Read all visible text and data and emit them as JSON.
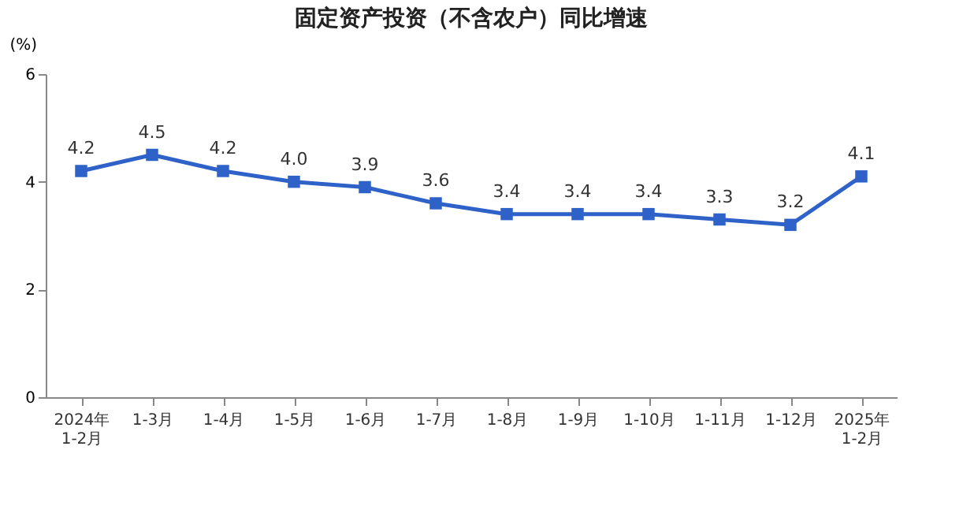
{
  "chart_data": {
    "type": "line",
    "title": "固定资产投资（不含农户）同比增速",
    "ylabel": "(%)",
    "categories": [
      "2024年\n1-2月",
      "1-3月",
      "1-4月",
      "1-5月",
      "1-6月",
      "1-7月",
      "1-8月",
      "1-9月",
      "1-10月",
      "1-11月",
      "1-12月",
      "2025年\n1-2月"
    ],
    "series": [
      {
        "color": "#2f62c8",
        "values": [
          4.2,
          4.5,
          4.2,
          4.0,
          3.9,
          3.6,
          3.4,
          3.4,
          3.4,
          3.3,
          3.2,
          4.1
        ],
        "value_labels": [
          "4.2",
          "4.5",
          "4.2",
          "4.0",
          "3.9",
          "3.6",
          "3.4",
          "3.4",
          "3.4",
          "3.3",
          "3.2",
          "4.1"
        ]
      }
    ],
    "ylim": [
      0,
      6
    ],
    "yticks": [
      0,
      2,
      4,
      6
    ],
    "grid": false,
    "marker": "square",
    "line_style": "solid"
  }
}
